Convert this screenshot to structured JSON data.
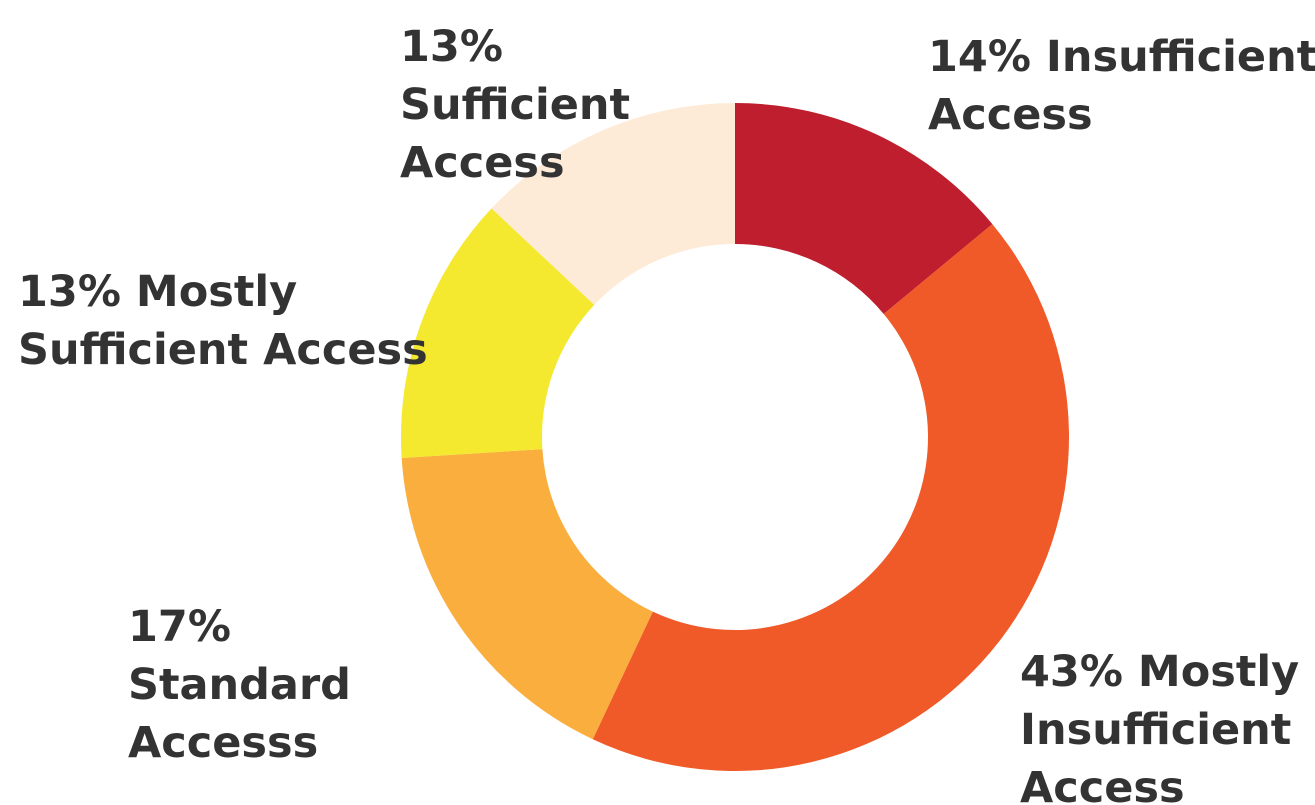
{
  "chart_data": {
    "type": "donut",
    "categories": [
      "Insufficient Access",
      "Mostly Insufficient Access",
      "Standard Accesss",
      "Mostly Sufficient Access",
      "Sufficient Access"
    ],
    "values": [
      14,
      43,
      17,
      13,
      13
    ],
    "value_labels": [
      "14%",
      "43%",
      "17%",
      "13%",
      "13%"
    ],
    "colors": [
      "#be1e2d",
      "#f05a28",
      "#f9ae3d",
      "#f5e92f",
      "#fdebd7"
    ]
  }
}
